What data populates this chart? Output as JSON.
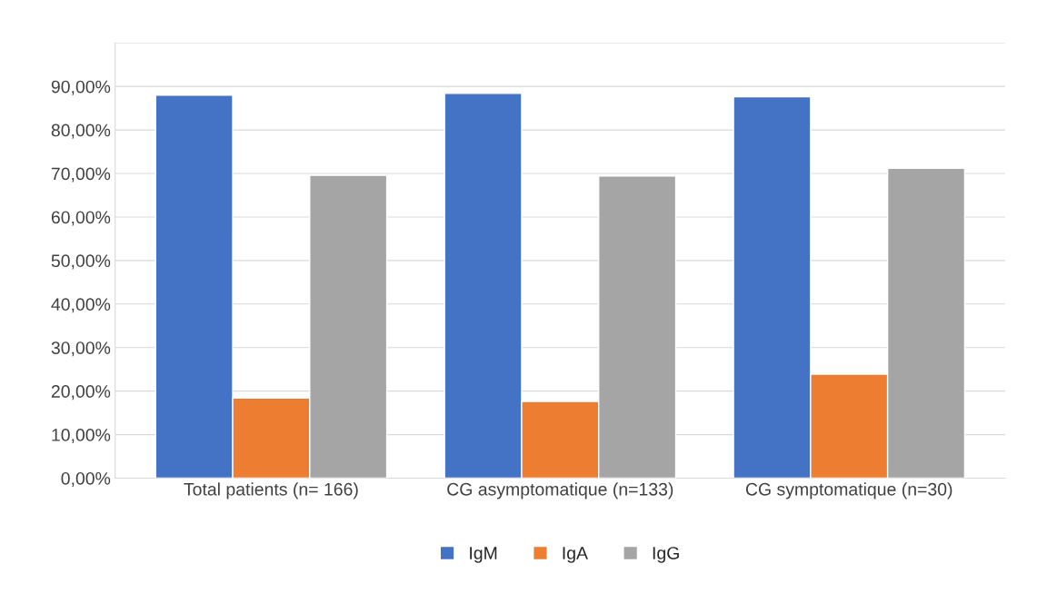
{
  "chart_data": {
    "type": "bar",
    "categories": [
      "Total patients (n= 166)",
      "CG asymptomatique (n=133)",
      "CG symptomatique (n=30)"
    ],
    "series": [
      {
        "name": "IgM",
        "color": "#4472c4",
        "values": [
          88.0,
          88.4,
          87.6
        ]
      },
      {
        "name": "IgA",
        "color": "#ed7d31",
        "values": [
          18.4,
          17.6,
          23.9
        ]
      },
      {
        "name": "IgG",
        "color": "#a5a5a5",
        "values": [
          69.6,
          69.4,
          71.2
        ]
      }
    ],
    "ylim": [
      0,
      100
    ],
    "yticks": [
      {
        "value": 0,
        "label": "0,00%"
      },
      {
        "value": 10,
        "label": "10,00%"
      },
      {
        "value": 20,
        "label": "20,00%"
      },
      {
        "value": 30,
        "label": "30,00%"
      },
      {
        "value": 40,
        "label": "40,00%"
      },
      {
        "value": 50,
        "label": "50,00%"
      },
      {
        "value": 60,
        "label": "60,00%"
      },
      {
        "value": 70,
        "label": "70,00%"
      },
      {
        "value": 80,
        "label": "80,00%"
      },
      {
        "value": 90,
        "label": "90,00%"
      },
      {
        "value": 100,
        "label": null
      }
    ],
    "grid": "y",
    "legend": "bottom"
  }
}
